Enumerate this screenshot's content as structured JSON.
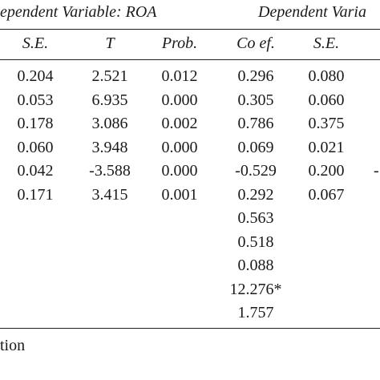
{
  "header": {
    "left_title": "ependent Variable: ROA",
    "right_title": "Dependent Varia"
  },
  "columns": [
    "S.E.",
    "T",
    "Prob.",
    "Co ef.",
    "S.E."
  ],
  "rows": [
    [
      "0.204",
      "2.521",
      "0.012",
      "0.296",
      "0.080"
    ],
    [
      "0.053",
      "6.935",
      "0.000",
      "0.305",
      "0.060"
    ],
    [
      "0.178",
      "3.086",
      "0.002",
      "0.786",
      "0.375"
    ],
    [
      "0.060",
      "3.948",
      "0.000",
      "0.069",
      "0.021"
    ],
    [
      "0.042",
      "-3.588",
      "0.000",
      "-0.529",
      "0.200"
    ],
    [
      "0.171",
      "3.415",
      "0.001",
      "0.292",
      "0.067"
    ],
    [
      "",
      "",
      "",
      "0.563",
      ""
    ],
    [
      "",
      "",
      "",
      "0.518",
      ""
    ],
    [
      "",
      "",
      "",
      "0.088",
      ""
    ],
    [
      "",
      "",
      "",
      "12.276*",
      ""
    ],
    [
      "",
      "",
      "",
      "1.757",
      ""
    ]
  ],
  "edge_mark": "-",
  "footer_note": "tion"
}
